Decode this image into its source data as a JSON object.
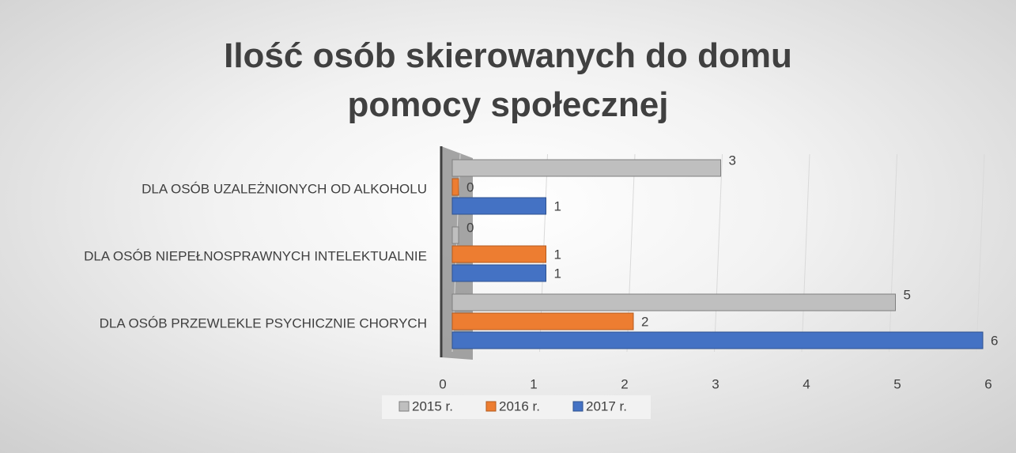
{
  "chart_data": {
    "type": "bar",
    "orientation": "horizontal",
    "title": "Ilość osób skierowanych do domu pomocy społecznej",
    "categories": [
      "DLA OSÓB PRZEWLEKLE PSYCHICZNIE CHORYCH",
      "DLA OSÓB NIEPEŁNOSPRAWNYCH INTELEKTUALNIE",
      "DLA OSÓB UZALEŻNIONYCH OD ALKOHOLU"
    ],
    "series": [
      {
        "name": "2015 r.",
        "color": "#bfbfbf",
        "values": [
          5,
          0,
          3
        ]
      },
      {
        "name": "2016 r.",
        "color": "#ed7d31",
        "values": [
          2,
          1,
          0
        ]
      },
      {
        "name": "2017 r.",
        "color": "#4472c4",
        "values": [
          6,
          1,
          1
        ]
      }
    ],
    "xlim": [
      0,
      6
    ],
    "xticks": [
      0,
      1,
      2,
      3,
      4,
      5,
      6
    ],
    "grid": true,
    "legend": "bottom"
  }
}
